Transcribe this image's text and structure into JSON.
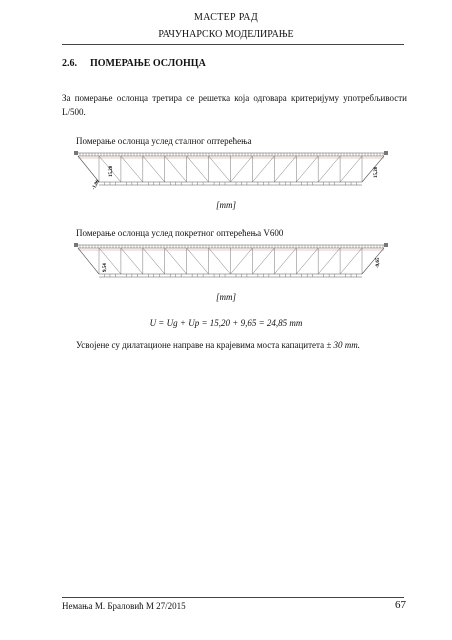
{
  "header": {
    "title": "МАСТЕР РАД",
    "subtitle": "РАЧУНАРСКО МОДЕЛИРАЊЕ"
  },
  "section": {
    "number": "2.6.",
    "title": "ПОМЕРАЊЕ ОСЛОНЦА"
  },
  "intro_text": "За померање ослонца третира се решетка која одговара критеријуму употребљивости L/500.",
  "figures": [
    {
      "caption": "Померање ослонца услед сталног оптерећења",
      "unit": "[mm]",
      "labels": [
        "15,20",
        "-1,06",
        "15,20"
      ]
    },
    {
      "caption": "Померање ослонца услед покретног оптерећења V600",
      "unit": "[mm]",
      "labels": [
        "9,54",
        "-9,65"
      ]
    }
  ],
  "formula": "U = Ug + Up = 15,20 + 9,65 = 24,85 mm",
  "conclusion": {
    "text": "Усвојене су дилатационе направе на крајевима моста капацитета",
    "capacity": "± 30 mm."
  },
  "footer": {
    "author": "Немања М. Браловић М 27/2015",
    "page": "67"
  }
}
